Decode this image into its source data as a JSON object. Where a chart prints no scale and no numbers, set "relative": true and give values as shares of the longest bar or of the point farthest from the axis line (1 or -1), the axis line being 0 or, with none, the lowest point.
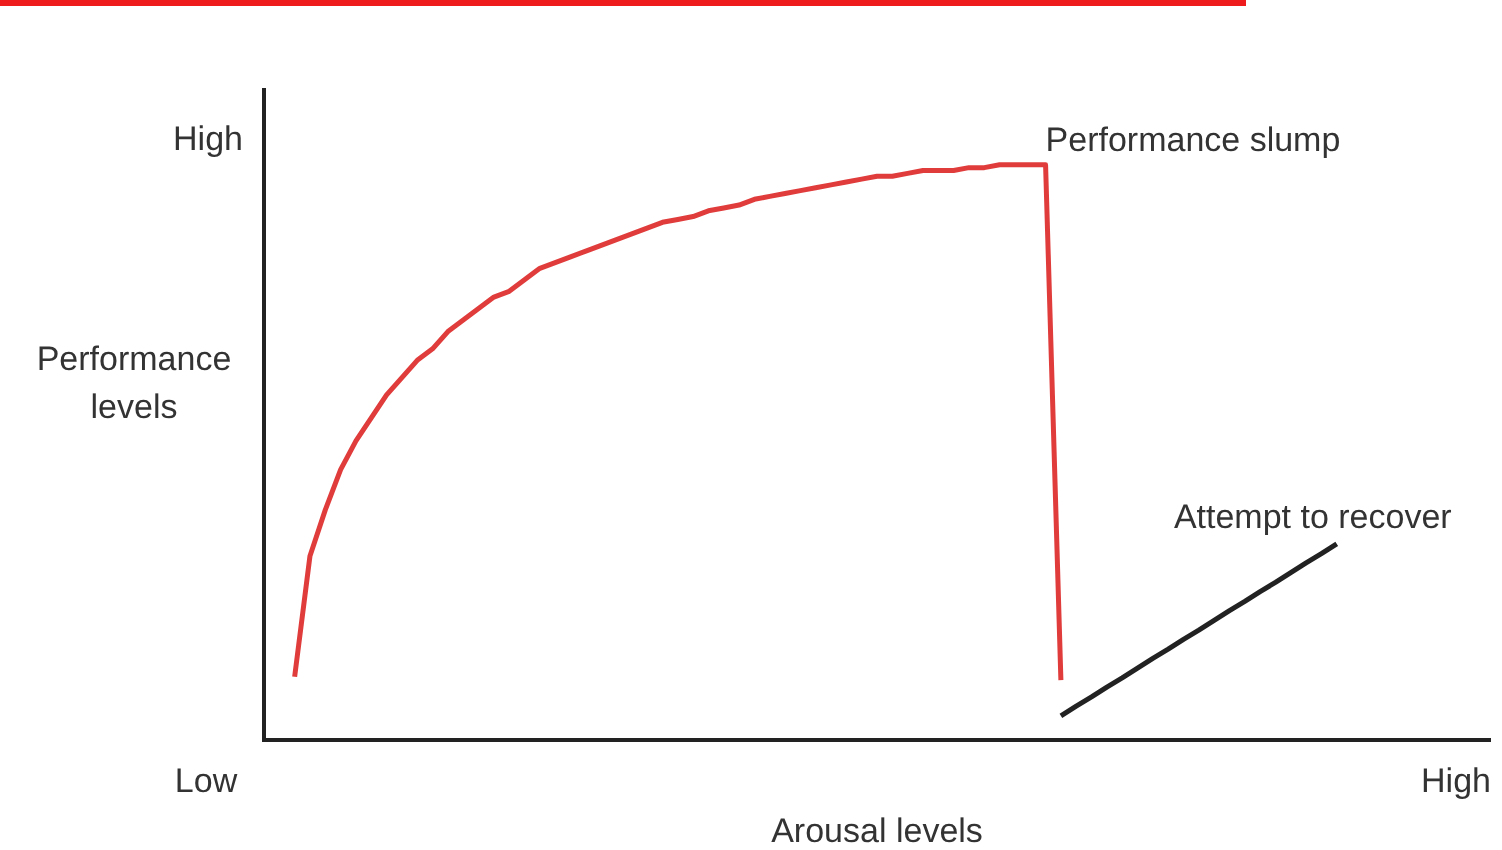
{
  "chart_data": {
    "type": "line",
    "relative": true,
    "xlabel": "Arousal levels",
    "ylabel": "Performance levels",
    "categories": [
      null,
      null,
      null,
      null,
      null,
      null,
      null,
      null,
      null,
      null,
      null,
      null,
      null,
      null,
      null,
      null,
      null,
      null,
      null,
      null,
      null,
      null,
      null,
      null,
      null,
      null,
      null,
      null,
      null,
      null,
      null,
      null,
      null,
      null,
      null,
      null,
      null,
      null,
      null,
      null,
      null,
      null,
      null,
      null,
      null,
      null,
      null,
      null,
      null,
      null,
      null,
      null,
      null,
      null,
      null,
      null,
      null,
      null,
      null,
      null,
      null,
      null,
      null,
      null,
      null,
      null,
      null,
      null,
      null,
      null,
      null,
      null,
      null,
      null,
      null,
      null,
      null,
      null,
      null,
      null,
      null
    ],
    "series": [
      {
        "color": "#e03c3c",
        "values": [
          null,
          null,
          0.11,
          0.32,
          0.4,
          0.47,
          0.52,
          0.56,
          0.6,
          0.63,
          0.66,
          0.68,
          0.71,
          0.73,
          0.75,
          0.77,
          0.78,
          0.8,
          0.82,
          0.83,
          0.84,
          0.85,
          0.86,
          0.87,
          0.88,
          0.89,
          0.9,
          0.905,
          0.91,
          0.92,
          0.925,
          0.93,
          0.94,
          0.945,
          0.95,
          0.955,
          0.96,
          0.965,
          0.97,
          0.975,
          0.98,
          0.98,
          0.985,
          0.99,
          0.99,
          0.99,
          0.995,
          0.995,
          1,
          1,
          1,
          1,
          0.104,
          null,
          null,
          null,
          null,
          null,
          null,
          null,
          null,
          null,
          null,
          null,
          null,
          null,
          null,
          null,
          null,
          null,
          null,
          null,
          null,
          null,
          null,
          null,
          null,
          null,
          null,
          null,
          null
        ]
      },
      {
        "color": "#222222",
        "values": [
          null,
          null,
          null,
          null,
          null,
          null,
          null,
          null,
          null,
          null,
          null,
          null,
          null,
          null,
          null,
          null,
          null,
          null,
          null,
          null,
          null,
          null,
          null,
          null,
          null,
          null,
          null,
          null,
          null,
          null,
          null,
          null,
          null,
          null,
          null,
          null,
          null,
          null,
          null,
          null,
          null,
          null,
          null,
          null,
          null,
          null,
          null,
          null,
          null,
          null,
          null,
          null,
          0.042,
          0.059,
          0.075,
          0.092,
          0.108,
          0.125,
          0.142,
          0.158,
          0.175,
          0.191,
          0.208,
          0.225,
          0.241,
          0.258,
          0.274,
          0.291,
          0.308,
          0.324,
          0.341,
          null,
          null,
          null,
          null,
          null,
          null,
          null,
          null,
          null,
          null
        ]
      }
    ],
    "annotations": [
      "Performance slump",
      "Attempt to recover",
      "High",
      "Low",
      "High"
    ],
    "grid": false,
    "legend": false,
    "marker": "none",
    "line_style": "solid"
  }
}
